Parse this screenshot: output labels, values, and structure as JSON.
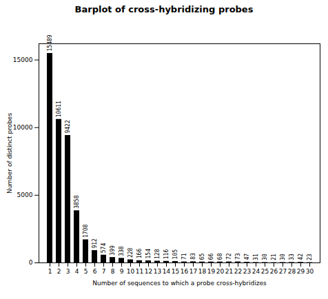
{
  "chart_data": {
    "type": "bar",
    "title": "Barplot of cross-hybridizing probes",
    "xlabel": "Number of sequences to which a probe cross-hybridizes",
    "ylabel": "Number of distinct probes",
    "categories": [
      1,
      2,
      3,
      4,
      5,
      6,
      7,
      8,
      9,
      10,
      11,
      12,
      13,
      14,
      15,
      16,
      17,
      18,
      19,
      20,
      21,
      22,
      23,
      24,
      25,
      26,
      27,
      28,
      29,
      30
    ],
    "values": [
      15489,
      10611,
      9422,
      3858,
      1708,
      912,
      574,
      399,
      338,
      228,
      166,
      154,
      128,
      116,
      105,
      71,
      83,
      65,
      66,
      68,
      72,
      73,
      47,
      31,
      30,
      21,
      30,
      33,
      42,
      23
    ],
    "ylim": [
      0,
      16200
    ],
    "yticks": [
      0,
      5000,
      10000,
      15000
    ],
    "data_labels": true
  }
}
